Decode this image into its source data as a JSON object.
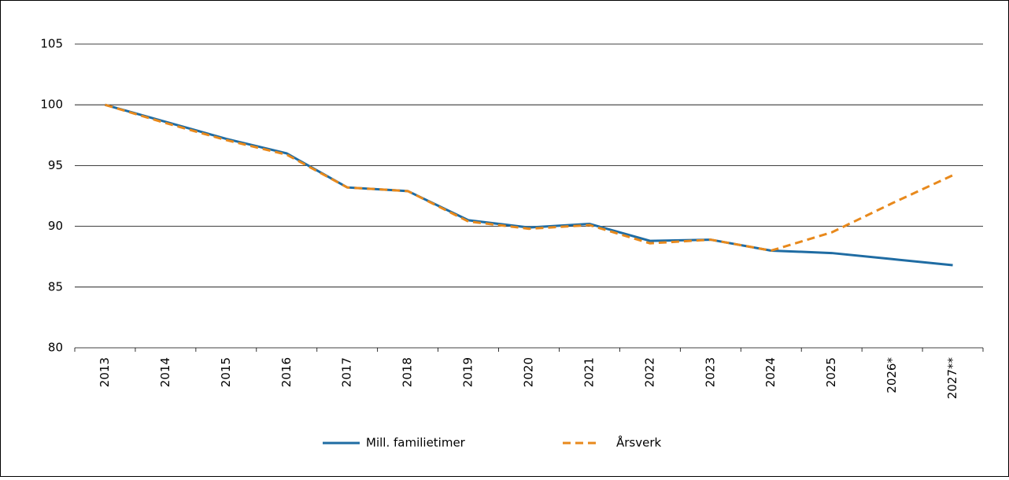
{
  "chart_data": {
    "type": "line",
    "categories": [
      "2013",
      "2014",
      "2015",
      "2016",
      "2017",
      "2018",
      "2019",
      "2020",
      "2021",
      "2022",
      "2023",
      "2024",
      "2025",
      "2026*",
      "2027**"
    ],
    "series": [
      {
        "name": "Mill. familietimer",
        "color": "#1f6ca3",
        "values": [
          100,
          98.6,
          97.2,
          96.0,
          93.2,
          92.9,
          90.5,
          89.9,
          90.2,
          88.8,
          88.9,
          88.0,
          87.8,
          87.3,
          86.8
        ]
      },
      {
        "name": "Årsverk",
        "color": "#e8891c",
        "dashed": true,
        "values": [
          100,
          98.5,
          97.1,
          95.9,
          93.2,
          92.9,
          90.4,
          89.8,
          90.1,
          88.6,
          88.9,
          88.0,
          89.5,
          91.9,
          94.2
        ]
      }
    ],
    "ylim": [
      80,
      105
    ],
    "yticks": [
      80,
      85,
      90,
      95,
      100,
      105
    ],
    "grid": true,
    "legend": "bottom"
  }
}
